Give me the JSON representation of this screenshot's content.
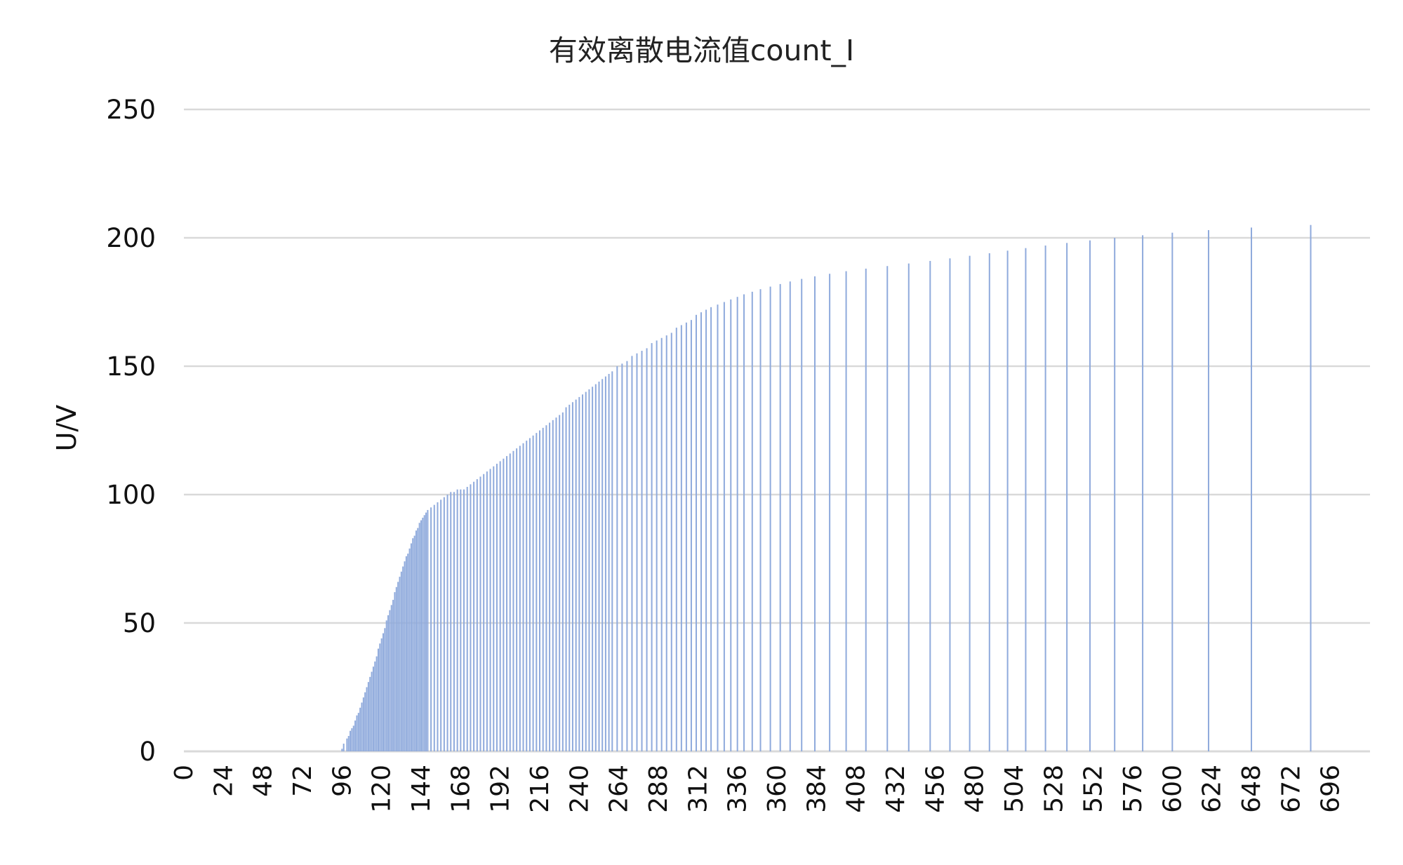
{
  "chart_data": {
    "type": "bar",
    "title": "有效离散电流值count_I",
    "xlabel": "",
    "ylabel": "U/V",
    "ylim": [
      0,
      250
    ],
    "yticks": [
      0,
      50,
      100,
      150,
      200,
      250
    ],
    "xlim": [
      0,
      720
    ],
    "xticks": [
      0,
      24,
      48,
      72,
      96,
      120,
      144,
      168,
      192,
      216,
      240,
      264,
      288,
      312,
      336,
      360,
      384,
      408,
      432,
      456,
      480,
      504,
      528,
      552,
      576,
      600,
      624,
      648,
      672,
      696
    ],
    "grid": true,
    "legend": "none",
    "colors": {
      "bar": "#8FAADC",
      "grid": "#D9D9D9",
      "text": "#111111"
    },
    "series": [
      {
        "values": [
          [
            96,
            1
          ],
          [
            97,
            3
          ],
          [
            99,
            5
          ],
          [
            100,
            6
          ],
          [
            101,
            8
          ],
          [
            102,
            9
          ],
          [
            103,
            10
          ],
          [
            104,
            12
          ],
          [
            105,
            14
          ],
          [
            106,
            15
          ],
          [
            107,
            17
          ],
          [
            108,
            19
          ],
          [
            109,
            21
          ],
          [
            110,
            23
          ],
          [
            111,
            25
          ],
          [
            112,
            27
          ],
          [
            113,
            29
          ],
          [
            114,
            31
          ],
          [
            115,
            33
          ],
          [
            116,
            35
          ],
          [
            117,
            37
          ],
          [
            118,
            40
          ],
          [
            119,
            42
          ],
          [
            120,
            44
          ],
          [
            121,
            46
          ],
          [
            122,
            48
          ],
          [
            123,
            51
          ],
          [
            124,
            53
          ],
          [
            125,
            55
          ],
          [
            126,
            57
          ],
          [
            127,
            59
          ],
          [
            128,
            62
          ],
          [
            129,
            64
          ],
          [
            130,
            66
          ],
          [
            131,
            68
          ],
          [
            132,
            70
          ],
          [
            133,
            72
          ],
          [
            134,
            74
          ],
          [
            135,
            76
          ],
          [
            136,
            77
          ],
          [
            137,
            79
          ],
          [
            138,
            81
          ],
          [
            139,
            83
          ],
          [
            140,
            84
          ],
          [
            141,
            86
          ],
          [
            142,
            87
          ],
          [
            143,
            89
          ],
          [
            144,
            90
          ],
          [
            145,
            91
          ],
          [
            146,
            92
          ],
          [
            147,
            93
          ],
          [
            148,
            94
          ],
          [
            150,
            95
          ],
          [
            152,
            96
          ],
          [
            154,
            97
          ],
          [
            156,
            98
          ],
          [
            158,
            99
          ],
          [
            160,
            100
          ],
          [
            162,
            101
          ],
          [
            164,
            101
          ],
          [
            166,
            102
          ],
          [
            168,
            102
          ],
          [
            170,
            102
          ],
          [
            172,
            103
          ],
          [
            174,
            104
          ],
          [
            176,
            105
          ],
          [
            178,
            106
          ],
          [
            180,
            107
          ],
          [
            182,
            108
          ],
          [
            184,
            109
          ],
          [
            186,
            110
          ],
          [
            188,
            111
          ],
          [
            190,
            112
          ],
          [
            192,
            113
          ],
          [
            194,
            114
          ],
          [
            196,
            115
          ],
          [
            198,
            116
          ],
          [
            200,
            117
          ],
          [
            202,
            118
          ],
          [
            204,
            119
          ],
          [
            206,
            120
          ],
          [
            208,
            121
          ],
          [
            210,
            122
          ],
          [
            212,
            123
          ],
          [
            214,
            124
          ],
          [
            216,
            125
          ],
          [
            218,
            126
          ],
          [
            220,
            127
          ],
          [
            222,
            128
          ],
          [
            224,
            129
          ],
          [
            226,
            130
          ],
          [
            228,
            131
          ],
          [
            230,
            132
          ],
          [
            232,
            134
          ],
          [
            234,
            135
          ],
          [
            236,
            136
          ],
          [
            238,
            137
          ],
          [
            240,
            138
          ],
          [
            242,
            139
          ],
          [
            244,
            140
          ],
          [
            246,
            141
          ],
          [
            248,
            142
          ],
          [
            250,
            143
          ],
          [
            252,
            144
          ],
          [
            254,
            145
          ],
          [
            256,
            146
          ],
          [
            258,
            147
          ],
          [
            260,
            148
          ],
          [
            263,
            150
          ],
          [
            266,
            151
          ],
          [
            269,
            152
          ],
          [
            272,
            154
          ],
          [
            275,
            155
          ],
          [
            278,
            156
          ],
          [
            281,
            157
          ],
          [
            284,
            159
          ],
          [
            287,
            160
          ],
          [
            290,
            161
          ],
          [
            293,
            162
          ],
          [
            296,
            163
          ],
          [
            299,
            165
          ],
          [
            302,
            166
          ],
          [
            305,
            167
          ],
          [
            308,
            168
          ],
          [
            311,
            170
          ],
          [
            314,
            171
          ],
          [
            317,
            172
          ],
          [
            320,
            173
          ],
          [
            324,
            174
          ],
          [
            328,
            175
          ],
          [
            332,
            176
          ],
          [
            336,
            177
          ],
          [
            340,
            178
          ],
          [
            345,
            179
          ],
          [
            350,
            180
          ],
          [
            356,
            181
          ],
          [
            362,
            182
          ],
          [
            368,
            183
          ],
          [
            375,
            184
          ],
          [
            383,
            185
          ],
          [
            392,
            186
          ],
          [
            402,
            187
          ],
          [
            414,
            188
          ],
          [
            427,
            189
          ],
          [
            440,
            190
          ],
          [
            453,
            191
          ],
          [
            465,
            192
          ],
          [
            477,
            193
          ],
          [
            489,
            194
          ],
          [
            500,
            195
          ],
          [
            511,
            196
          ],
          [
            523,
            197
          ],
          [
            536,
            198
          ],
          [
            550,
            199
          ],
          [
            565,
            200
          ],
          [
            582,
            201
          ],
          [
            600,
            202
          ],
          [
            622,
            203
          ],
          [
            648,
            204
          ],
          [
            684,
            205
          ]
        ]
      }
    ]
  }
}
